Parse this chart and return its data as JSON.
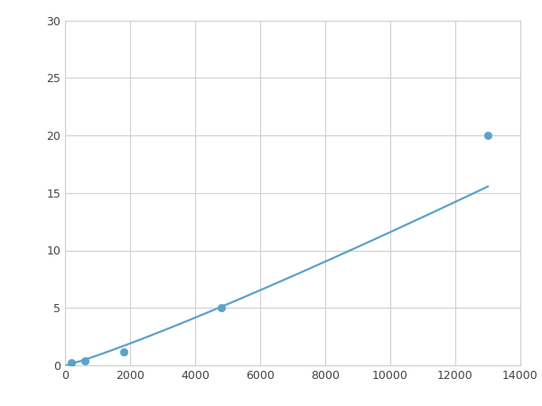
{
  "x_points": [
    200,
    600,
    1800,
    4800,
    13000
  ],
  "y_points": [
    0.2,
    0.4,
    1.2,
    5.0,
    20.0
  ],
  "line_color": "#5ba3c9",
  "marker_color": "#5ba3c9",
  "marker_size": 6,
  "line_width": 1.6,
  "xlim": [
    0,
    14000
  ],
  "ylim": [
    0,
    30
  ],
  "xticks": [
    0,
    2000,
    4000,
    6000,
    8000,
    10000,
    12000,
    14000
  ],
  "yticks": [
    0,
    5,
    10,
    15,
    20,
    25,
    30
  ],
  "grid_color": "#d0d0d0",
  "background_color": "#ffffff",
  "figure_background": "#ffffff",
  "tick_fontsize": 9,
  "tick_color": "#444444"
}
